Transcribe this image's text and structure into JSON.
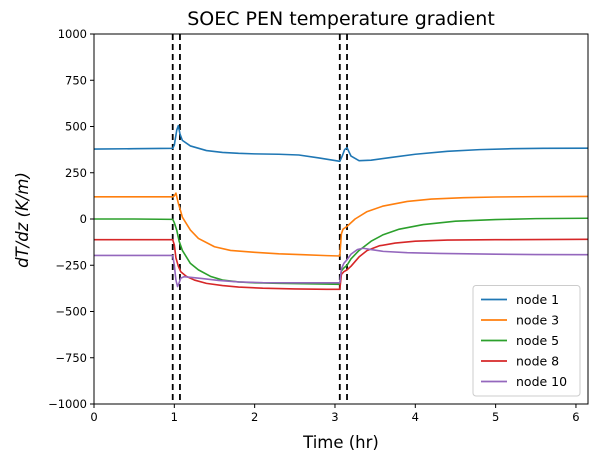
{
  "chart_data": {
    "type": "line",
    "title": "SOEC PEN temperature gradient",
    "xlabel": "Time (hr)",
    "ylabel": "dT/dz (K/m)",
    "xlim": [
      0,
      6.15
    ],
    "ylim": [
      -1000,
      1000
    ],
    "xticks": [
      0,
      1,
      2,
      3,
      4,
      5,
      6
    ],
    "yticks": [
      -1000,
      -750,
      -500,
      -250,
      0,
      250,
      500,
      750,
      1000
    ],
    "xtick_labels": [
      "0",
      "1",
      "2",
      "3",
      "4",
      "5",
      "6"
    ],
    "ytick_labels": [
      "−1000",
      "−750",
      "−500",
      "−250",
      "0",
      "250",
      "500",
      "750",
      "1000"
    ],
    "grid": false,
    "legend_position": "bottom-right",
    "vlines": [
      {
        "x": 0.98,
        "style": "dashed",
        "color": "#000000"
      },
      {
        "x": 1.07,
        "style": "dashed",
        "color": "#000000"
      },
      {
        "x": 3.06,
        "style": "dashed",
        "color": "#000000"
      },
      {
        "x": 3.15,
        "style": "dashed",
        "color": "#000000"
      }
    ],
    "series": [
      {
        "name": "node 1",
        "color": "#1f77b4",
        "x": [
          0,
          0.5,
          0.98,
          1.0,
          1.03,
          1.05,
          1.07,
          1.1,
          1.2,
          1.4,
          1.6,
          1.8,
          2.0,
          2.3,
          2.55,
          2.8,
          3.06,
          3.09,
          3.12,
          3.15,
          3.2,
          3.3,
          3.45,
          3.7,
          4.0,
          4.4,
          4.8,
          5.2,
          5.6,
          6.15
        ],
        "y": [
          378,
          380,
          382,
          400,
          480,
          505,
          460,
          425,
          395,
          370,
          360,
          355,
          352,
          350,
          346,
          330,
          312,
          340,
          375,
          385,
          340,
          315,
          318,
          333,
          350,
          366,
          375,
          380,
          382,
          383
        ]
      },
      {
        "name": "node 3",
        "color": "#ff7f0e",
        "x": [
          0,
          0.5,
          0.98,
          1.0,
          1.02,
          1.05,
          1.1,
          1.2,
          1.3,
          1.5,
          1.7,
          2.0,
          2.3,
          2.6,
          2.9,
          3.06,
          3.08,
          3.1,
          3.15,
          3.25,
          3.4,
          3.6,
          3.9,
          4.2,
          4.6,
          5.0,
          5.5,
          6.15
        ],
        "y": [
          120,
          120,
          120,
          125,
          140,
          85,
          10,
          -60,
          -105,
          -150,
          -170,
          -180,
          -188,
          -193,
          -198,
          -200,
          -80,
          -55,
          -40,
          0,
          40,
          70,
          95,
          108,
          115,
          119,
          121,
          122
        ]
      },
      {
        "name": "node 5",
        "color": "#2ca02c",
        "x": [
          0,
          0.5,
          0.98,
          1.0,
          1.03,
          1.06,
          1.1,
          1.2,
          1.3,
          1.45,
          1.6,
          1.8,
          2.0,
          2.3,
          2.6,
          2.9,
          3.06,
          3.08,
          3.11,
          3.15,
          3.2,
          3.3,
          3.45,
          3.6,
          3.8,
          4.1,
          4.5,
          5.0,
          5.5,
          6.15
        ],
        "y": [
          0,
          0,
          -2,
          -20,
          -60,
          -120,
          -170,
          -240,
          -275,
          -310,
          -330,
          -340,
          -345,
          -348,
          -350,
          -352,
          -353,
          -280,
          -265,
          -250,
          -215,
          -170,
          -120,
          -85,
          -55,
          -30,
          -12,
          -3,
          2,
          4
        ]
      },
      {
        "name": "node 8",
        "color": "#d62728",
        "x": [
          0,
          0.5,
          0.98,
          1.0,
          1.02,
          1.05,
          1.08,
          1.15,
          1.25,
          1.4,
          1.6,
          1.8,
          2.1,
          2.5,
          2.9,
          3.06,
          3.08,
          3.11,
          3.15,
          3.2,
          3.3,
          3.4,
          3.55,
          3.75,
          4.0,
          4.4,
          5.0,
          5.5,
          6.15
        ],
        "y": [
          -112,
          -112,
          -112,
          -140,
          -210,
          -255,
          -285,
          -310,
          -330,
          -348,
          -360,
          -368,
          -374,
          -378,
          -380,
          -380,
          -300,
          -285,
          -275,
          -255,
          -205,
          -170,
          -145,
          -130,
          -120,
          -114,
          -112,
          -111,
          -110
        ]
      },
      {
        "name": "node 10",
        "color": "#9467bd",
        "x": [
          0,
          0.5,
          0.98,
          1.0,
          1.02,
          1.04,
          1.06,
          1.08,
          1.12,
          1.2,
          1.35,
          1.55,
          1.8,
          2.1,
          2.5,
          2.9,
          3.06,
          3.08,
          3.11,
          3.15,
          3.2,
          3.28,
          3.35,
          3.45,
          3.6,
          3.9,
          4.3,
          5.0,
          5.5,
          6.15
        ],
        "y": [
          -197,
          -197,
          -197,
          -250,
          -330,
          -365,
          -345,
          -320,
          -312,
          -315,
          -322,
          -332,
          -340,
          -344,
          -345,
          -345,
          -345,
          -270,
          -240,
          -220,
          -190,
          -165,
          -158,
          -165,
          -175,
          -182,
          -186,
          -190,
          -192,
          -193
        ]
      }
    ]
  }
}
